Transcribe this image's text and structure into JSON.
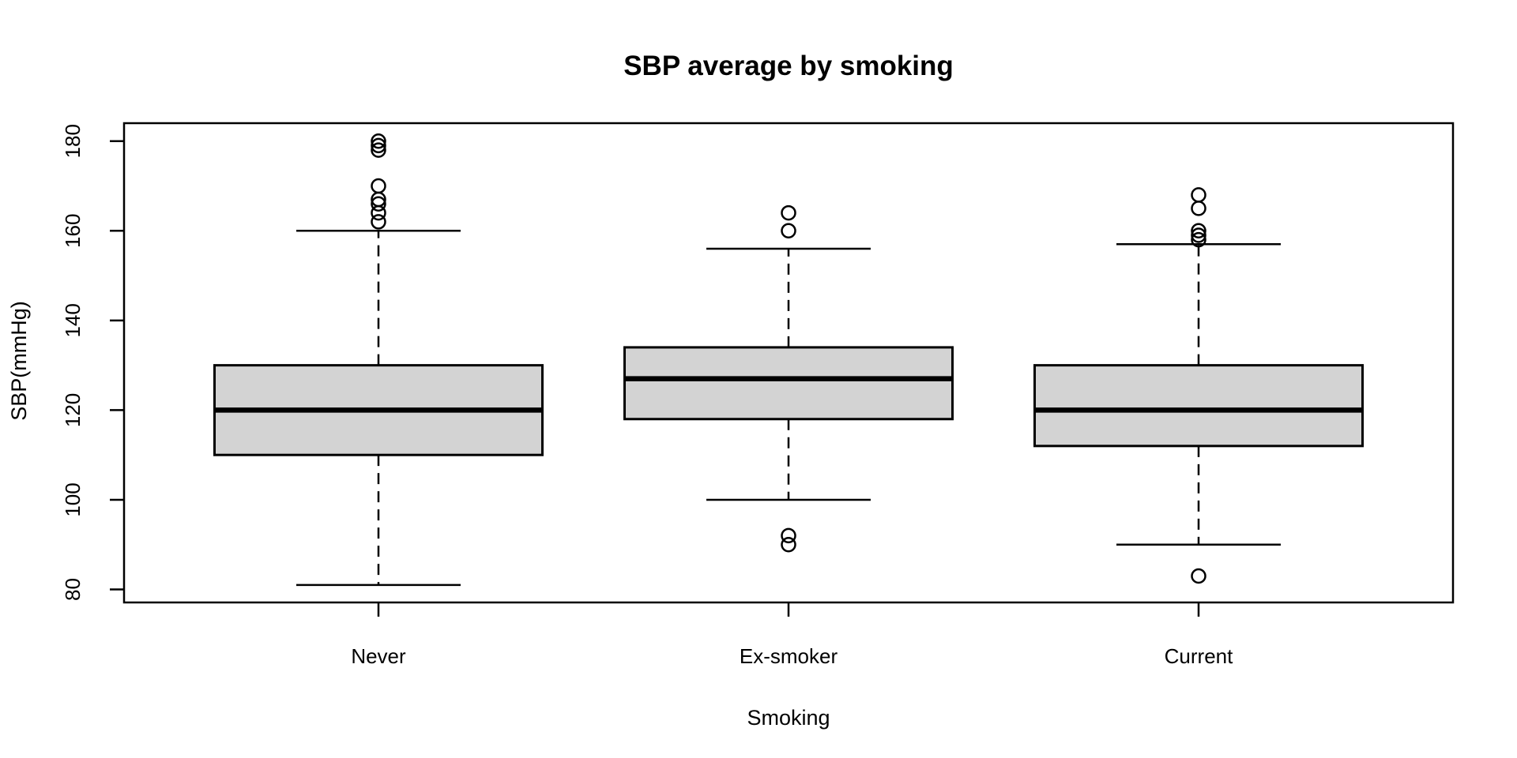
{
  "chart_data": {
    "type": "boxplot",
    "title": "SBP average by smoking",
    "xlabel": "Smoking",
    "ylabel": "SBP(mmHg)",
    "categories": [
      "Never",
      "Ex-smoker",
      "Current"
    ],
    "yticks": [
      80,
      100,
      120,
      140,
      160,
      180
    ],
    "ylim": [
      77,
      184
    ],
    "grid": "off",
    "legend": "none",
    "series": [
      {
        "name": "Never",
        "whisker_low": 81,
        "q1": 110,
        "median": 120,
        "q3": 130,
        "whisker_high": 160,
        "outliers": [
          162,
          164,
          166,
          167,
          170,
          178,
          179,
          180
        ]
      },
      {
        "name": "Ex-smoker",
        "whisker_low": 100,
        "q1": 118,
        "median": 127,
        "q3": 134,
        "whisker_high": 156,
        "outliers": [
          90,
          92,
          160,
          164
        ]
      },
      {
        "name": "Current",
        "whisker_low": 90,
        "q1": 112,
        "median": 120,
        "q3": 130,
        "whisker_high": 157,
        "outliers": [
          83,
          158,
          159,
          160,
          165,
          168
        ]
      }
    ],
    "colors": {
      "box_fill": "#d3d3d3",
      "line": "#000000",
      "background": "#ffffff"
    }
  }
}
